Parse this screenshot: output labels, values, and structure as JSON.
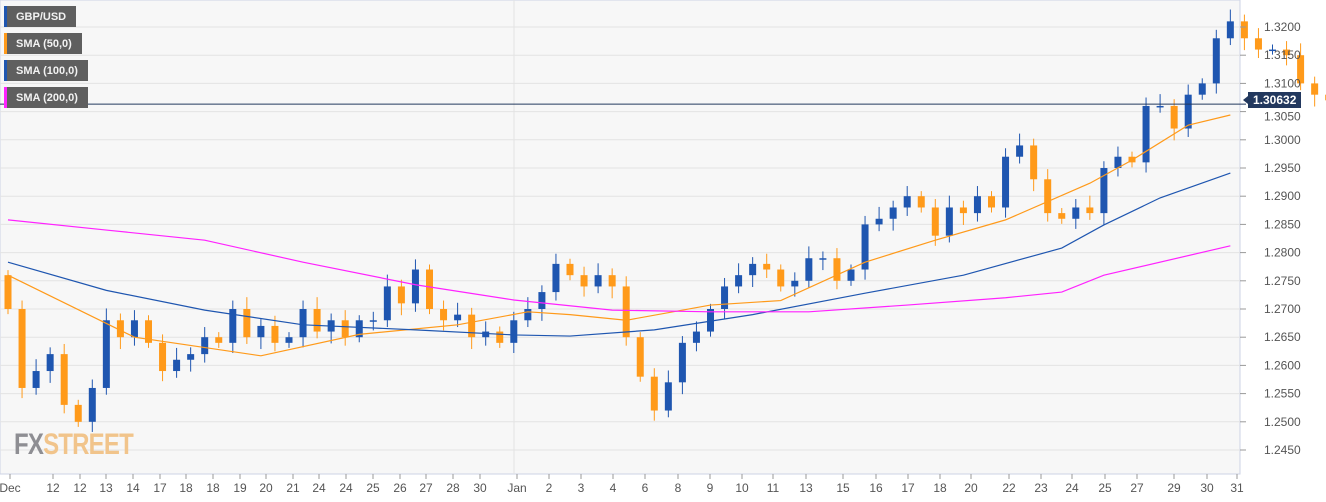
{
  "legend": [
    {
      "label": "GBP/USD",
      "color": "#1f56b0"
    },
    {
      "label": "SMA (50,0)",
      "color": "#ff9a1a"
    },
    {
      "label": "SMA (100,0)",
      "color": "#1f56b0"
    },
    {
      "label": "SMA (200,0)",
      "color": "#ff22ff"
    }
  ],
  "logo": {
    "fx": "FX",
    "street": "STREET"
  },
  "current_price": "1.30632",
  "colors": {
    "up": "#1f56b0",
    "down": "#ff9a1a",
    "sma50": "#ff9a1a",
    "sma100": "#1f56b0",
    "sma200": "#ff22ff",
    "price_line": "#22385e",
    "plot_bg": "#f7f7f7",
    "grid": "#e3e3e3"
  },
  "chart_data": {
    "type": "candlestick",
    "title": "GBP/USD",
    "ylim": [
      1.2425,
      1.3245
    ],
    "grid": true,
    "y_ticks": [
      "1.2450",
      "1.2500",
      "1.2550",
      "1.2600",
      "1.2650",
      "1.2700",
      "1.2750",
      "1.2800",
      "1.2850",
      "1.2900",
      "1.2950",
      "1.3000",
      "1.3050",
      "1.3100",
      "1.3150",
      "1.3200"
    ],
    "x_ticks": [
      "Dec",
      "12",
      "12",
      "13",
      "14",
      "17",
      "18",
      "18",
      "19",
      "20",
      "21",
      "24",
      "24",
      "25",
      "26",
      "27",
      "28",
      "30",
      "Jan",
      "2",
      "3",
      "4",
      "6",
      "8",
      "9",
      "10",
      "11",
      "13",
      "15",
      "16",
      "17",
      "18",
      "20",
      "22",
      "23",
      "24",
      "25",
      "27",
      "29",
      "30",
      "31"
    ],
    "close": [
      1.27,
      1.256,
      1.259,
      1.262,
      1.253,
      1.25,
      1.256,
      1.268,
      1.265,
      1.268,
      1.264,
      1.259,
      1.261,
      1.262,
      1.265,
      1.264,
      1.27,
      1.265,
      1.267,
      1.264,
      1.265,
      1.27,
      1.266,
      1.268,
      1.265,
      1.268,
      1.268,
      1.274,
      1.271,
      1.277,
      1.27,
      1.268,
      1.269,
      1.265,
      1.266,
      1.264,
      1.268,
      1.27,
      1.273,
      1.278,
      1.276,
      1.274,
      1.276,
      1.274,
      1.265,
      1.258,
      1.252,
      1.257,
      1.264,
      1.266,
      1.27,
      1.274,
      1.276,
      1.278,
      1.277,
      1.274,
      1.275,
      1.279,
      1.279,
      1.275,
      1.277,
      1.285,
      1.286,
      1.288,
      1.29,
      1.288,
      1.283,
      1.288,
      1.287,
      1.29,
      1.288,
      1.297,
      1.299,
      1.293,
      1.287,
      1.286,
      1.288,
      1.287,
      1.295,
      1.297,
      1.296,
      1.306,
      1.306,
      1.302,
      1.308,
      1.31,
      1.318,
      1.321,
      1.318,
      1.316,
      1.316,
      1.315,
      1.31,
      1.308,
      1.307,
      1.3063
    ],
    "open_first": 1.276,
    "sma": [
      {
        "name": "SMA (50,0)",
        "points": [
          [
            0,
            1.276
          ],
          [
            9,
            1.265
          ],
          [
            18,
            1.2617
          ],
          [
            25,
            1.2655
          ],
          [
            32,
            1.2672
          ],
          [
            37,
            1.2695
          ],
          [
            40,
            1.269
          ],
          [
            44,
            1.268
          ],
          [
            50,
            1.2707
          ],
          [
            55,
            1.2715
          ],
          [
            61,
            1.2783
          ],
          [
            66,
            1.2822
          ],
          [
            71,
            1.2858
          ],
          [
            77,
            1.2923
          ],
          [
            80,
            1.2964
          ],
          [
            84,
            1.3026
          ],
          [
            87,
            1.3044
          ]
        ]
      },
      {
        "name": "SMA (100,0)",
        "points": [
          [
            0,
            1.2783
          ],
          [
            7,
            1.2733
          ],
          [
            14,
            1.2698
          ],
          [
            21,
            1.2672
          ],
          [
            29,
            1.2663
          ],
          [
            36,
            1.2654
          ],
          [
            40,
            1.2652
          ],
          [
            46,
            1.2663
          ],
          [
            53,
            1.269
          ],
          [
            61,
            1.2728
          ],
          [
            68,
            1.276
          ],
          [
            75,
            1.2808
          ],
          [
            78,
            1.2849
          ],
          [
            82,
            1.2897
          ],
          [
            87,
            1.2941
          ]
        ]
      },
      {
        "name": "SMA (200,0)",
        "points": [
          [
            0,
            1.2858
          ],
          [
            7,
            1.284
          ],
          [
            14,
            1.2822
          ],
          [
            21,
            1.2783
          ],
          [
            29,
            1.2743
          ],
          [
            36,
            1.2716
          ],
          [
            43,
            1.2698
          ],
          [
            50,
            1.2695
          ],
          [
            57,
            1.2695
          ],
          [
            64,
            1.2707
          ],
          [
            71,
            1.272
          ],
          [
            75,
            1.273
          ],
          [
            78,
            1.276
          ],
          [
            87,
            1.2812
          ]
        ]
      }
    ]
  }
}
